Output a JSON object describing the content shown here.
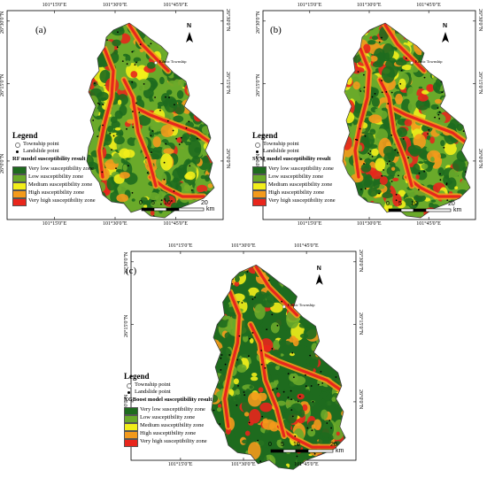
{
  "panels": [
    {
      "label": "(a)",
      "model_title": "RF model susceptibility result",
      "top_coords": [
        "101°15'0\"E",
        "101°30'0\"E",
        "101°45'0\"E"
      ],
      "bottom_coords": [
        "101°15'0\"E",
        "101°30'0\"E",
        "101°45'0\"E"
      ],
      "left_coords": [
        "26°30'0\"N",
        "26°15'0\"N",
        "26°0'0\"N"
      ],
      "right_coords": [
        "26°30'0\"N",
        "26°15'0\"N",
        "26°0'0\"N"
      ],
      "township_label": "Ethnic Township"
    },
    {
      "label": "(b)",
      "model_title": "SVM model susceptibility result",
      "top_coords": [
        "101°15'0\"E",
        "101°30'0\"E",
        "101°45'0\"E"
      ],
      "bottom_coords": [
        "101°15'0\"E",
        "101°30'0\"E",
        "101°45'0\"E"
      ],
      "left_coords": [
        "26°30'0\"N",
        "26°15'0\"N",
        "26°0'0\"N"
      ],
      "right_coords": [
        "26°30'0\"N",
        "26°15'0\"N",
        "26°0'0\"N"
      ],
      "township_label": "Ethnic Township"
    },
    {
      "label": "(c)",
      "model_title": "XGBoost model susceptibility result",
      "top_coords": [
        "101°15'0\"E",
        "101°30'0\"E",
        "101°45'0\"E"
      ],
      "bottom_coords": [
        "101°15'0\"E",
        "101°30'0\"E",
        "101°45'0\"E"
      ],
      "left_coords": [
        "26°30'0\"N",
        "26°15'0\"N",
        "26°0'0\"N"
      ],
      "right_coords": [
        "26°30'0\"N",
        "26°15'0\"N",
        "26°0'0\"N"
      ],
      "township_label": "Ethnic Township"
    }
  ],
  "legend": {
    "title": "Legend",
    "township": "Township point",
    "landslide": "Landslide point",
    "zones": [
      {
        "label": "Very low susceptibility zone",
        "color": "#1e6b1e"
      },
      {
        "label": "Low susceptibility zone",
        "color": "#6aaa2a"
      },
      {
        "label": "Medium susceptibility zone",
        "color": "#f2ee1a"
      },
      {
        "label": "High susceptibility zone",
        "color": "#f39a1c"
      },
      {
        "label": "Very high susceptibility zone",
        "color": "#e8261c"
      }
    ]
  },
  "scale": {
    "ticks": [
      "0",
      "5",
      "10",
      "20"
    ],
    "unit": "km"
  },
  "north": "N"
}
